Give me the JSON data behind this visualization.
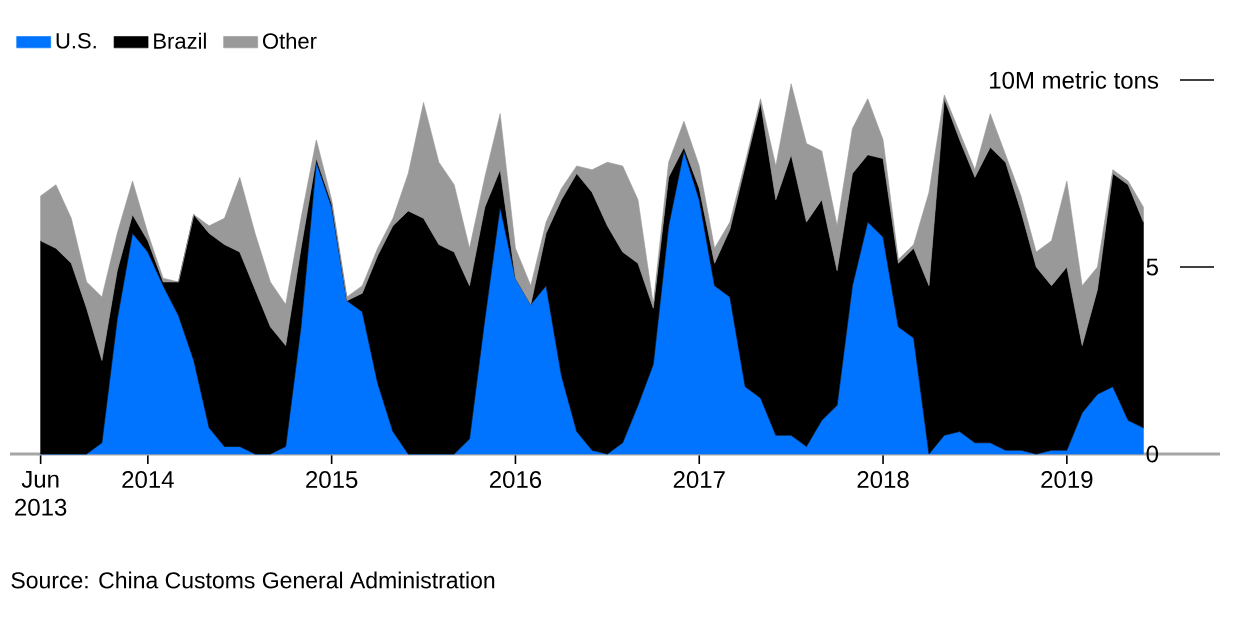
{
  "chart_data": {
    "type": "area",
    "stacked": true,
    "legend": "top left",
    "x": [
      "2013-06",
      "2013-07",
      "2013-08",
      "2013-09",
      "2013-10",
      "2013-11",
      "2013-12",
      "2014-01",
      "2014-02",
      "2014-03",
      "2014-04",
      "2014-05",
      "2014-06",
      "2014-07",
      "2014-08",
      "2014-09",
      "2014-10",
      "2014-11",
      "2014-12",
      "2015-01",
      "2015-02",
      "2015-03",
      "2015-04",
      "2015-05",
      "2015-06",
      "2015-07",
      "2015-08",
      "2015-09",
      "2015-10",
      "2015-11",
      "2015-12",
      "2016-01",
      "2016-02",
      "2016-03",
      "2016-04",
      "2016-05",
      "2016-06",
      "2016-07",
      "2016-08",
      "2016-09",
      "2016-10",
      "2016-11",
      "2016-12",
      "2017-01",
      "2017-02",
      "2017-03",
      "2017-04",
      "2017-05",
      "2017-06",
      "2017-07",
      "2017-08",
      "2017-09",
      "2017-10",
      "2017-11",
      "2017-12",
      "2018-01",
      "2018-02",
      "2018-03",
      "2018-04",
      "2018-05",
      "2018-06",
      "2018-07",
      "2018-08",
      "2018-09",
      "2018-10",
      "2018-11",
      "2018-12",
      "2019-01",
      "2019-02",
      "2019-03",
      "2019-04",
      "2019-05",
      "2019-06"
    ],
    "series": [
      {
        "name": "U.S.",
        "color": "#0073ff",
        "values": [
          0,
          0,
          0,
          0,
          0.3,
          3.6,
          5.9,
          5.4,
          4.5,
          3.7,
          2.5,
          0.7,
          0.2,
          0.2,
          0,
          0,
          0.2,
          3.4,
          7.8,
          6.6,
          4.1,
          3.8,
          1.9,
          0.6,
          0,
          0,
          0,
          0,
          0.4,
          3.6,
          6.6,
          4.7,
          4.0,
          4.5,
          2.1,
          0.6,
          0.1,
          0,
          0.3,
          1.3,
          2.4,
          6.1,
          8.1,
          6.8,
          4.5,
          4.2,
          1.8,
          1.5,
          0.5,
          0.5,
          0.2,
          0.9,
          1.3,
          4.5,
          6.2,
          5.8,
          3.4,
          3.1,
          0,
          0.5,
          0.6,
          0.3,
          0.3,
          0.1,
          0.1,
          0,
          0.1,
          0.1,
          1.1,
          1.6,
          1.8,
          0.9,
          0.7
        ]
      },
      {
        "name": "Brazil",
        "color": "#000000",
        "values": [
          5.7,
          5.5,
          5.1,
          3.9,
          2.2,
          1.3,
          0.5,
          0.3,
          0.1,
          0.9,
          3.9,
          5.2,
          5.4,
          5.2,
          4.4,
          3.4,
          2.7,
          2.1,
          0.1,
          0.1,
          0,
          0.5,
          3.4,
          5.5,
          6.5,
          6.3,
          5.6,
          5.4,
          4.1,
          3.0,
          1.0,
          0,
          0,
          1.4,
          4.7,
          6.9,
          6.9,
          6.1,
          5.1,
          3.8,
          1.5,
          1.3,
          0.1,
          0.3,
          0.6,
          1.8,
          5.9,
          7.9,
          6.3,
          7.5,
          6.0,
          5.9,
          3.6,
          3.0,
          1.8,
          2.1,
          1.7,
          2.4,
          4.5,
          9.0,
          7.8,
          7.1,
          7.9,
          7.7,
          6.4,
          5.0,
          4.4,
          4.9,
          1.8,
          2.8,
          5.7,
          6.3,
          5.5
        ]
      },
      {
        "name": "Other",
        "color": "#999999",
        "values": [
          1.2,
          1.7,
          1.2,
          0.7,
          1.7,
          1.0,
          0.9,
          0.2,
          0.1,
          0,
          0,
          0.2,
          0.7,
          2.0,
          1.5,
          1.2,
          1.1,
          0.8,
          0.5,
          0.1,
          0.1,
          0.2,
          0.2,
          0.2,
          1.0,
          3.1,
          2.2,
          1.8,
          1.0,
          0.8,
          1.5,
          0.8,
          0.5,
          0.3,
          0.3,
          0.2,
          0.6,
          1.7,
          2.3,
          1.7,
          0.1,
          0.4,
          0.7,
          0.6,
          0.4,
          0.2,
          0.1,
          0.1,
          0.9,
          1.9,
          2.1,
          1.3,
          1.2,
          1.2,
          1.5,
          0.5,
          0.1,
          0.1,
          2.5,
          0.1,
          0.2,
          0.2,
          0.9,
          0.2,
          0.4,
          0.4,
          1.2,
          2.3,
          1.6,
          0.6,
          0.1,
          0.1,
          0.4
        ]
      }
    ],
    "xlim": [
      "2013-04",
      "2019-11"
    ],
    "xticks": [
      {
        "value": "2013-06",
        "label": "Jun 2013"
      },
      {
        "value": "2014-01",
        "label": "2014"
      },
      {
        "value": "2015-01",
        "label": "2015"
      },
      {
        "value": "2016-01",
        "label": "2016"
      },
      {
        "value": "2017-01",
        "label": "2017"
      },
      {
        "value": "2018-01",
        "label": "2018"
      },
      {
        "value": "2019-01",
        "label": "2019"
      }
    ],
    "ylim": [
      0,
      10
    ],
    "yticks": [
      0,
      5,
      {
        "value": 10,
        "label": "10M metric tons"
      }
    ],
    "annotations": [
      "Source: China Customs General Administration"
    ]
  }
}
